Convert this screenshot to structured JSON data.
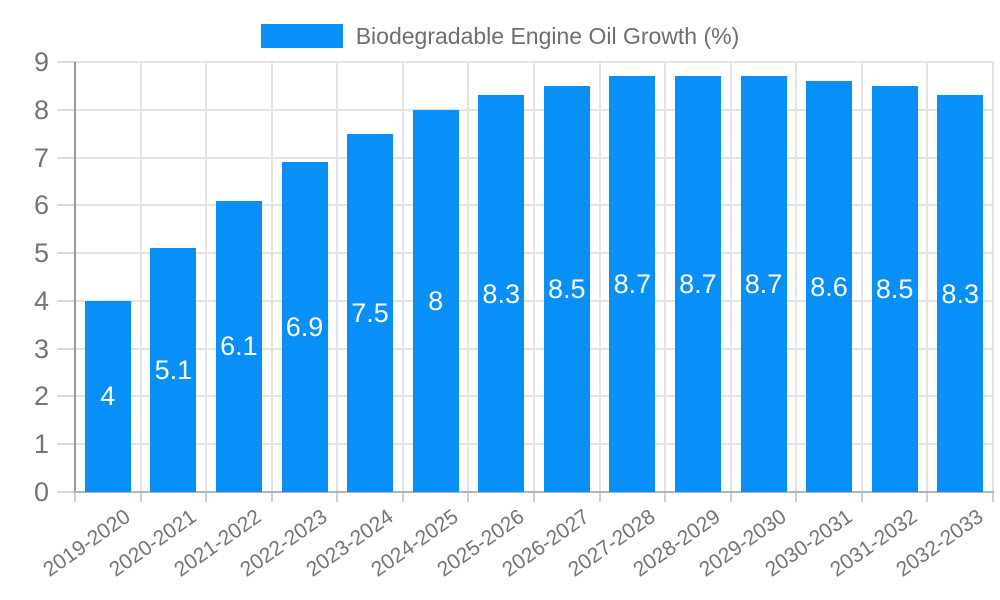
{
  "chart_data": {
    "type": "bar",
    "title": "Biodegradable Engine Oil Growth (%)",
    "categories": [
      "2019-2020",
      "2020-2021",
      "2021-2022",
      "2022-2023",
      "2023-2024",
      "2024-2025",
      "2025-2026",
      "2026-2027",
      "2027-2028",
      "2028-2029",
      "2029-2030",
      "2030-2031",
      "2031-2032",
      "2032-2033"
    ],
    "values": [
      4,
      5.1,
      6.1,
      6.9,
      7.5,
      8,
      8.3,
      8.5,
      8.7,
      8.7,
      8.7,
      8.6,
      8.5,
      8.3
    ],
    "value_labels": [
      "4",
      "5.1",
      "6.1",
      "6.9",
      "7.5",
      "8",
      "8.3",
      "8.5",
      "8.7",
      "8.7",
      "8.7",
      "8.6",
      "8.5",
      "8.3"
    ],
    "xlabel": "",
    "ylabel": "",
    "ylim": [
      0,
      9
    ],
    "yticks": [
      "0",
      "1",
      "2",
      "3",
      "4",
      "5",
      "6",
      "7",
      "8",
      "9"
    ],
    "grid": true,
    "legend_position": "top",
    "colors": {
      "bar": "#0890F8",
      "value_label": "#FFFFFF",
      "grid": "#E3E3E3",
      "y_axis_line": "#999999",
      "x_axis_line": "#B3B3B3",
      "y_tick": "#DBDBDB",
      "x_tick": "#CFCFCF",
      "axis_label": "#757575",
      "legend_text": "#6E6E6E",
      "background": "#FFFFFF"
    }
  }
}
